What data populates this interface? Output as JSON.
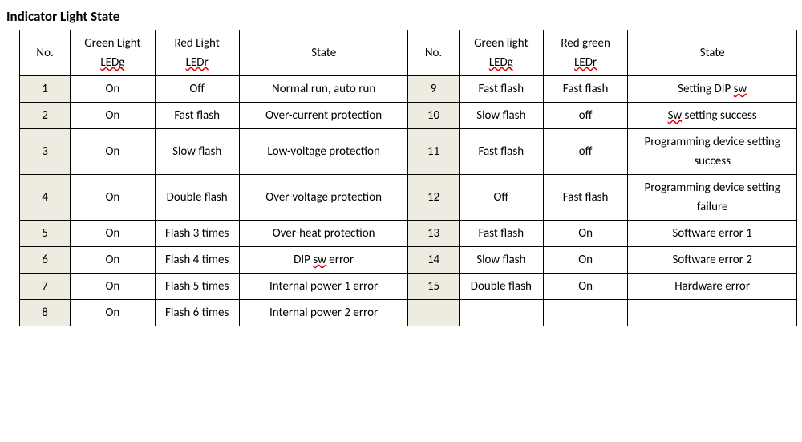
{
  "title": "Indicator Light State",
  "headers": {
    "no": "No.",
    "green1_a": "Green Light",
    "green1_b": "LEDg",
    "red1_a": "Red Light",
    "red1_b": "LEDr",
    "state": "State",
    "green2_a": "Green light",
    "green2_b": "LEDg",
    "red2_a": "Red green",
    "red2_b": "LEDr"
  },
  "rows": [
    {
      "n1": "1",
      "g1": "On",
      "r1": "Off",
      "s1": "Normal run, auto run",
      "n2": "9",
      "g2": "Fast flash",
      "r2": "Fast flash",
      "s2": "Setting DIP sw"
    },
    {
      "n1": "2",
      "g1": "On",
      "r1": "Fast flash",
      "s1": "Over-current protection",
      "n2": "10",
      "g2": "Slow flash",
      "r2": "off",
      "s2": "Sw setting success"
    },
    {
      "n1": "3",
      "g1": "On",
      "r1": "Slow flash",
      "s1": "Low-voltage protection",
      "n2": "11",
      "g2": "Fast flash",
      "r2": "off",
      "s2": "Programming device setting success"
    },
    {
      "n1": "4",
      "g1": "On",
      "r1": "Double flash",
      "s1": "Over-voltage protection",
      "n2": "12",
      "g2": "Off",
      "r2": "Fast flash",
      "s2": "Programming device setting failure"
    },
    {
      "n1": "5",
      "g1": "On",
      "r1": "Flash 3 times",
      "s1": "Over-heat protection",
      "n2": "13",
      "g2": "Fast flash",
      "r2": "On",
      "s2": "Software error 1"
    },
    {
      "n1": "6",
      "g1": "On",
      "r1": "Flash 4 times",
      "s1": "DIP sw error",
      "n2": "14",
      "g2": "Slow flash",
      "r2": "On",
      "s2": "Software error 2"
    },
    {
      "n1": "7",
      "g1": "On",
      "r1": "Flash 5 times",
      "s1": "Internal power 1 error",
      "n2": "15",
      "g2": "Double flash",
      "r2": "On",
      "s2": "Hardware error"
    },
    {
      "n1": "8",
      "g1": "On",
      "r1": "Flash 6 times",
      "s1": "Internal power 2 error",
      "n2": "",
      "g2": "",
      "r2": "",
      "s2": ""
    }
  ],
  "squiggles": {
    "header": [
      "LEDg",
      "LEDr"
    ],
    "cells": [
      "sw",
      "Sw"
    ]
  },
  "colors": {
    "no_cell_bg": "#eeece1",
    "border": "#000000",
    "squiggle": "#dd0000"
  }
}
